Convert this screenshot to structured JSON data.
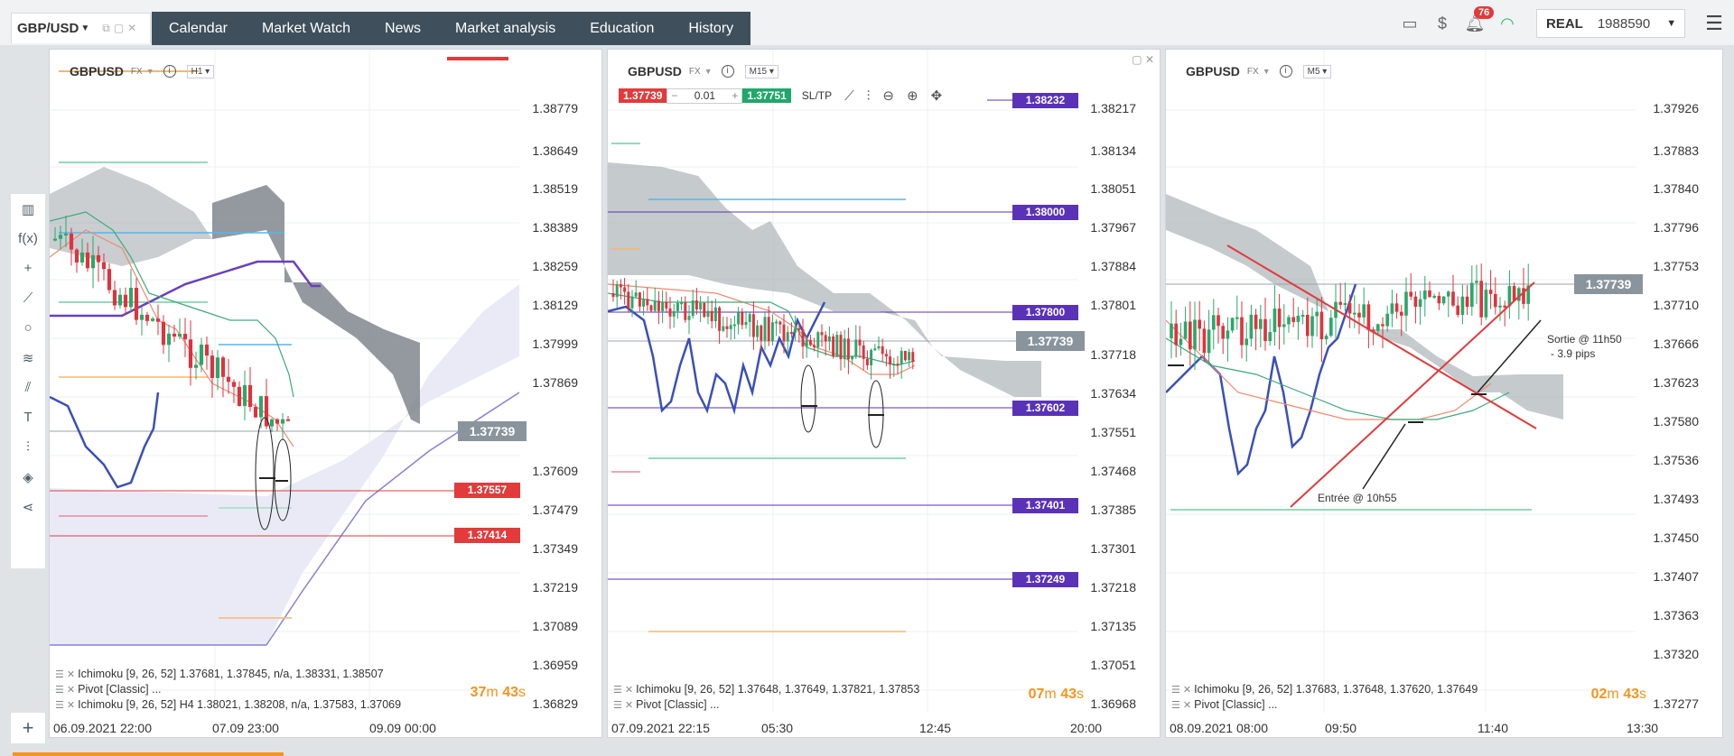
{
  "header": {
    "symbol_tab": "GBP/USD",
    "nav": [
      "Calendar",
      "Market Watch",
      "News",
      "Market analysis",
      "Education",
      "History"
    ],
    "notifications": "76",
    "account_type": "REAL",
    "balance": "1988590"
  },
  "panels": [
    {
      "symbol": "GBPUSD",
      "market": "FX",
      "timeframe": "H1",
      "y_ticks": [
        "1.38779",
        "1.38649",
        "1.38519",
        "1.38389",
        "1.38259",
        "1.38129",
        "1.37999",
        "1.37869",
        "1.37609",
        "1.37479",
        "1.37349",
        "1.37219",
        "1.37089",
        "1.36959",
        "1.36829"
      ],
      "price_tags": [
        {
          "label": "1.37739",
          "kind": "current"
        },
        {
          "label": "1.37557",
          "kind": "red"
        },
        {
          "label": "1.37414",
          "kind": "red"
        }
      ],
      "x_ticks": [
        "06.09.2021 22:00",
        "07.09 23:00",
        "09.09 00:00"
      ],
      "legend": [
        "Ichimoku [9, 26, 52] 1.37681, 1.37845, n/a, 1.38331, 1.38507",
        "Pivot [Classic] ...",
        "Ichimoku [9, 26, 52] H4 1.38021, 1.38208, n/a, 1.37583, 1.37069"
      ],
      "timer": {
        "m": "37",
        "s": "43"
      }
    },
    {
      "symbol": "GBPUSD",
      "market": "FX",
      "timeframe": "M15",
      "trade": {
        "sell": "1.37739",
        "qty": "0.01",
        "buy": "1.37751",
        "sltp": "SL/TP"
      },
      "y_ticks": [
        "1.38217",
        "1.38134",
        "1.38051",
        "1.37967",
        "1.37884",
        "1.37801",
        "1.37718",
        "1.37634",
        "1.37551",
        "1.37468",
        "1.37385",
        "1.37301",
        "1.37218",
        "1.37135",
        "1.37051",
        "1.36968"
      ],
      "price_tags": [
        {
          "label": "1.38232",
          "kind": "purple"
        },
        {
          "label": "1.38000",
          "kind": "purple"
        },
        {
          "label": "1.37800",
          "kind": "purple"
        },
        {
          "label": "1.37739",
          "kind": "current"
        },
        {
          "label": "1.37602",
          "kind": "purple"
        },
        {
          "label": "1.37401",
          "kind": "purple"
        },
        {
          "label": "1.37249",
          "kind": "purple"
        }
      ],
      "x_ticks": [
        "07.09.2021 22:15",
        "05:30",
        "12:45",
        "20:00"
      ],
      "legend": [
        "Ichimoku [9, 26, 52] 1.37648, 1.37649, 1.37821, 1.37853",
        "Pivot [Classic] ..."
      ],
      "timer": {
        "m": "07",
        "s": "43"
      }
    },
    {
      "symbol": "GBPUSD",
      "market": "FX",
      "timeframe": "M5",
      "y_ticks": [
        "1.37926",
        "1.37883",
        "1.37840",
        "1.37796",
        "1.37753",
        "1.37710",
        "1.37666",
        "1.37623",
        "1.37580",
        "1.37536",
        "1.37493",
        "1.37450",
        "1.37407",
        "1.37363",
        "1.37320",
        "1.37277"
      ],
      "price_tags": [
        {
          "label": "1.37739",
          "kind": "current"
        }
      ],
      "annotations": {
        "exit": "Sortie @ 11h50",
        "exit_pips": "- 3.9 pips",
        "entry": "Entrée @ 10h55"
      },
      "x_ticks": [
        "08.09.2021 08:00",
        "09:50",
        "11:40",
        "13:30"
      ],
      "legend": [
        "Ichimoku [9, 26, 52] 1.37683, 1.37648, 1.37620, 1.37649",
        "Pivot [Classic] ..."
      ],
      "timer": {
        "m": "02",
        "s": "43"
      }
    }
  ]
}
